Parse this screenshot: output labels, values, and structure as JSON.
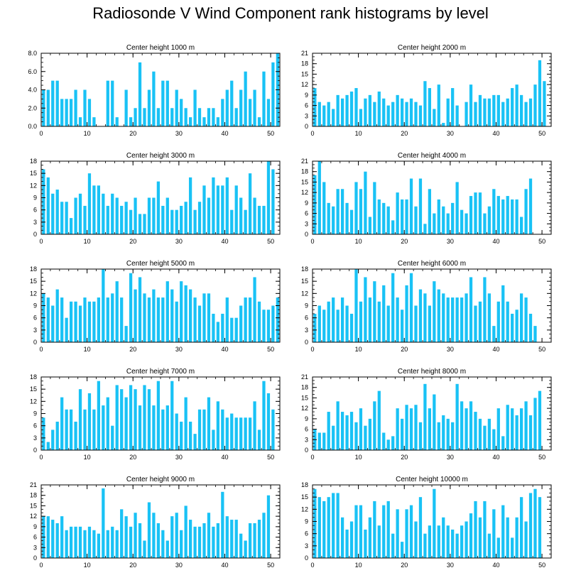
{
  "title": "Radiosonde V Wind Component rank histograms by level",
  "colors": {
    "bar": "#19c2f5",
    "axis": "#000000",
    "background": "#ffffff"
  },
  "chart_data": [
    {
      "type": "bar",
      "title": "Center height 1000 m",
      "ylim": [
        0,
        8
      ],
      "yticks": [
        "0.0",
        "2.0",
        "4.0",
        "6.0",
        "8.0"
      ],
      "xlim": [
        0,
        52
      ],
      "xticks": [
        "0",
        "10",
        "20",
        "30",
        "40",
        "50"
      ],
      "values": [
        4,
        4,
        5,
        5,
        3,
        3,
        3,
        4,
        1,
        4,
        3,
        1,
        0,
        0,
        5,
        5,
        1,
        0,
        4,
        1,
        2,
        7,
        2,
        4,
        6,
        2,
        5,
        5,
        2,
        4,
        3,
        2,
        1,
        4,
        2,
        1,
        2,
        2,
        1,
        3,
        4,
        5,
        2,
        4,
        6,
        3,
        4,
        1,
        6,
        3,
        7,
        8
      ]
    },
    {
      "type": "bar",
      "title": "Center height 2000 m",
      "ylim": [
        0,
        21
      ],
      "yticks": [
        "0",
        "3",
        "6",
        "9",
        "12",
        "15",
        "18",
        "21"
      ],
      "xlim": [
        0,
        52
      ],
      "xticks": [
        "0",
        "10",
        "20",
        "30",
        "40",
        "50"
      ],
      "values": [
        11,
        7,
        6,
        7,
        5,
        9,
        8,
        9,
        10,
        11,
        5,
        8,
        9,
        7,
        10,
        8,
        6,
        7,
        9,
        8,
        7,
        8,
        7,
        6,
        13,
        11,
        5,
        12,
        1,
        8,
        11,
        6,
        0,
        7,
        12,
        7,
        9,
        8,
        8,
        9,
        9,
        7,
        8,
        11,
        12,
        9,
        7,
        8,
        12,
        19,
        13
      ]
    },
    {
      "type": "bar",
      "title": "Center height 3000 m",
      "ylim": [
        0,
        18
      ],
      "yticks": [
        "0",
        "3",
        "6",
        "9",
        "12",
        "15",
        "18"
      ],
      "xlim": [
        0,
        52
      ],
      "xticks": [
        "0",
        "10",
        "20",
        "30",
        "40",
        "50"
      ],
      "values": [
        16,
        14,
        10,
        11,
        8,
        8,
        4,
        9,
        10,
        7,
        15,
        12,
        12,
        10,
        7,
        10,
        9,
        7,
        8,
        6,
        9,
        5,
        5,
        9,
        9,
        13,
        7,
        9,
        6,
        6,
        7,
        8,
        14,
        6,
        8,
        12,
        9,
        14,
        12,
        12,
        14,
        6,
        12,
        9,
        6,
        15,
        9,
        7,
        7,
        18,
        16
      ]
    },
    {
      "type": "bar",
      "title": "Center height 4000 m",
      "ylim": [
        0,
        21
      ],
      "yticks": [
        "0",
        "3",
        "6",
        "9",
        "12",
        "15",
        "18",
        "21"
      ],
      "xlim": [
        0,
        52
      ],
      "xticks": [
        "0",
        "10",
        "20",
        "30",
        "40",
        "50"
      ],
      "values": [
        17,
        21,
        15,
        9,
        8,
        13,
        13,
        9,
        7,
        15,
        13,
        18,
        5,
        15,
        10,
        9,
        8,
        4,
        12,
        10,
        10,
        16,
        8,
        16,
        3,
        13,
        6,
        10,
        8,
        6,
        9,
        15,
        7,
        6,
        11,
        12,
        12,
        6,
        8,
        13,
        11,
        10,
        11,
        10,
        10,
        5,
        13,
        16
      ]
    },
    {
      "type": "bar",
      "title": "Center height 5000 m",
      "ylim": [
        0,
        18
      ],
      "yticks": [
        "0",
        "3",
        "6",
        "9",
        "12",
        "15",
        "18"
      ],
      "xlim": [
        0,
        52
      ],
      "xticks": [
        "0",
        "10",
        "20",
        "30",
        "40",
        "50"
      ],
      "values": [
        12,
        11,
        9,
        13,
        11,
        6,
        10,
        10,
        9,
        11,
        10,
        10,
        11,
        18,
        11,
        12,
        15,
        11,
        4,
        17,
        13,
        16,
        12,
        11,
        13,
        11,
        11,
        15,
        13,
        10,
        15,
        14,
        13,
        11,
        9,
        12,
        12,
        7,
        5,
        7,
        11,
        6,
        6,
        9,
        11,
        11,
        16,
        10,
        8,
        8,
        9,
        11
      ]
    },
    {
      "type": "bar",
      "title": "Center height 6000 m",
      "ylim": [
        0,
        18
      ],
      "yticks": [
        "0",
        "3",
        "6",
        "9",
        "12",
        "15",
        "18"
      ],
      "xlim": [
        0,
        52
      ],
      "xticks": [
        "0",
        "10",
        "20",
        "30",
        "40",
        "50"
      ],
      "values": [
        7,
        9,
        8,
        10,
        11,
        8,
        11,
        9,
        7,
        18,
        10,
        16,
        11,
        15,
        10,
        14,
        9,
        17,
        11,
        8,
        14,
        17,
        9,
        13,
        12,
        9,
        15,
        13,
        12,
        11,
        11,
        11,
        11,
        12,
        16,
        9,
        10,
        16,
        12,
        4,
        10,
        14,
        10,
        7,
        8,
        12,
        11,
        7,
        4
      ]
    },
    {
      "type": "bar",
      "title": "Center height 7000 m",
      "ylim": [
        0,
        18
      ],
      "yticks": [
        "0",
        "3",
        "6",
        "9",
        "12",
        "15",
        "18"
      ],
      "xlim": [
        0,
        52
      ],
      "xticks": [
        "0",
        "10",
        "20",
        "30",
        "40",
        "50"
      ],
      "values": [
        8,
        2,
        5,
        7,
        13,
        10,
        10,
        7,
        15,
        10,
        14,
        10,
        17,
        11,
        13,
        6,
        16,
        15,
        13,
        16,
        15,
        11,
        16,
        15,
        11,
        17,
        10,
        11,
        17,
        9,
        7,
        13,
        7,
        4,
        10,
        10,
        13,
        5,
        12,
        10,
        8,
        9,
        8,
        8,
        8,
        8,
        12,
        5,
        17,
        14,
        10
      ]
    },
    {
      "type": "bar",
      "title": "Center height 8000 m",
      "ylim": [
        0,
        21
      ],
      "yticks": [
        "0",
        "3",
        "6",
        "9",
        "12",
        "15",
        "18",
        "21"
      ],
      "xlim": [
        0,
        52
      ],
      "xticks": [
        "0",
        "10",
        "20",
        "30",
        "40",
        "50"
      ],
      "values": [
        6,
        5,
        5,
        11,
        7,
        14,
        11,
        10,
        11,
        8,
        12,
        7,
        9,
        14,
        17,
        5,
        3,
        4,
        12,
        9,
        13,
        12,
        13,
        8,
        19,
        12,
        16,
        8,
        10,
        9,
        8,
        19,
        14,
        12,
        14,
        11,
        9,
        7,
        9,
        6,
        12,
        4,
        13,
        12,
        10,
        12,
        14,
        10,
        15,
        17
      ]
    },
    {
      "type": "bar",
      "title": "Center height 9000 m",
      "ylim": [
        0,
        21
      ],
      "yticks": [
        "0",
        "3",
        "6",
        "9",
        "12",
        "15",
        "18",
        "21"
      ],
      "xlim": [
        0,
        52
      ],
      "xticks": [
        "0",
        "10",
        "20",
        "30",
        "40",
        "50"
      ],
      "values": [
        12,
        12,
        11,
        10,
        12,
        8,
        9,
        9,
        9,
        8,
        9,
        8,
        7,
        20,
        8,
        9,
        8,
        14,
        12,
        9,
        13,
        10,
        5,
        16,
        13,
        10,
        8,
        5,
        12,
        13,
        8,
        15,
        11,
        9,
        9,
        10,
        13,
        9,
        10,
        19,
        12,
        11,
        11,
        7,
        5,
        10,
        10,
        11,
        13,
        18
      ]
    },
    {
      "type": "bar",
      "title": "Center height 10000 m",
      "ylim": [
        0,
        18
      ],
      "yticks": [
        "0",
        "3",
        "6",
        "9",
        "12",
        "15",
        "18"
      ],
      "xlim": [
        0,
        52
      ],
      "xticks": [
        "0",
        "10",
        "20",
        "30",
        "40",
        "50"
      ],
      "values": [
        17,
        15,
        14,
        15,
        16,
        16,
        10,
        7,
        9,
        13,
        13,
        7,
        10,
        14,
        8,
        13,
        14,
        6,
        12,
        4,
        12,
        13,
        9,
        15,
        6,
        8,
        17,
        8,
        10,
        8,
        7,
        6,
        8,
        9,
        11,
        14,
        10,
        14,
        6,
        12,
        5,
        13,
        10,
        5,
        10,
        15,
        9,
        16,
        17,
        15
      ]
    }
  ]
}
